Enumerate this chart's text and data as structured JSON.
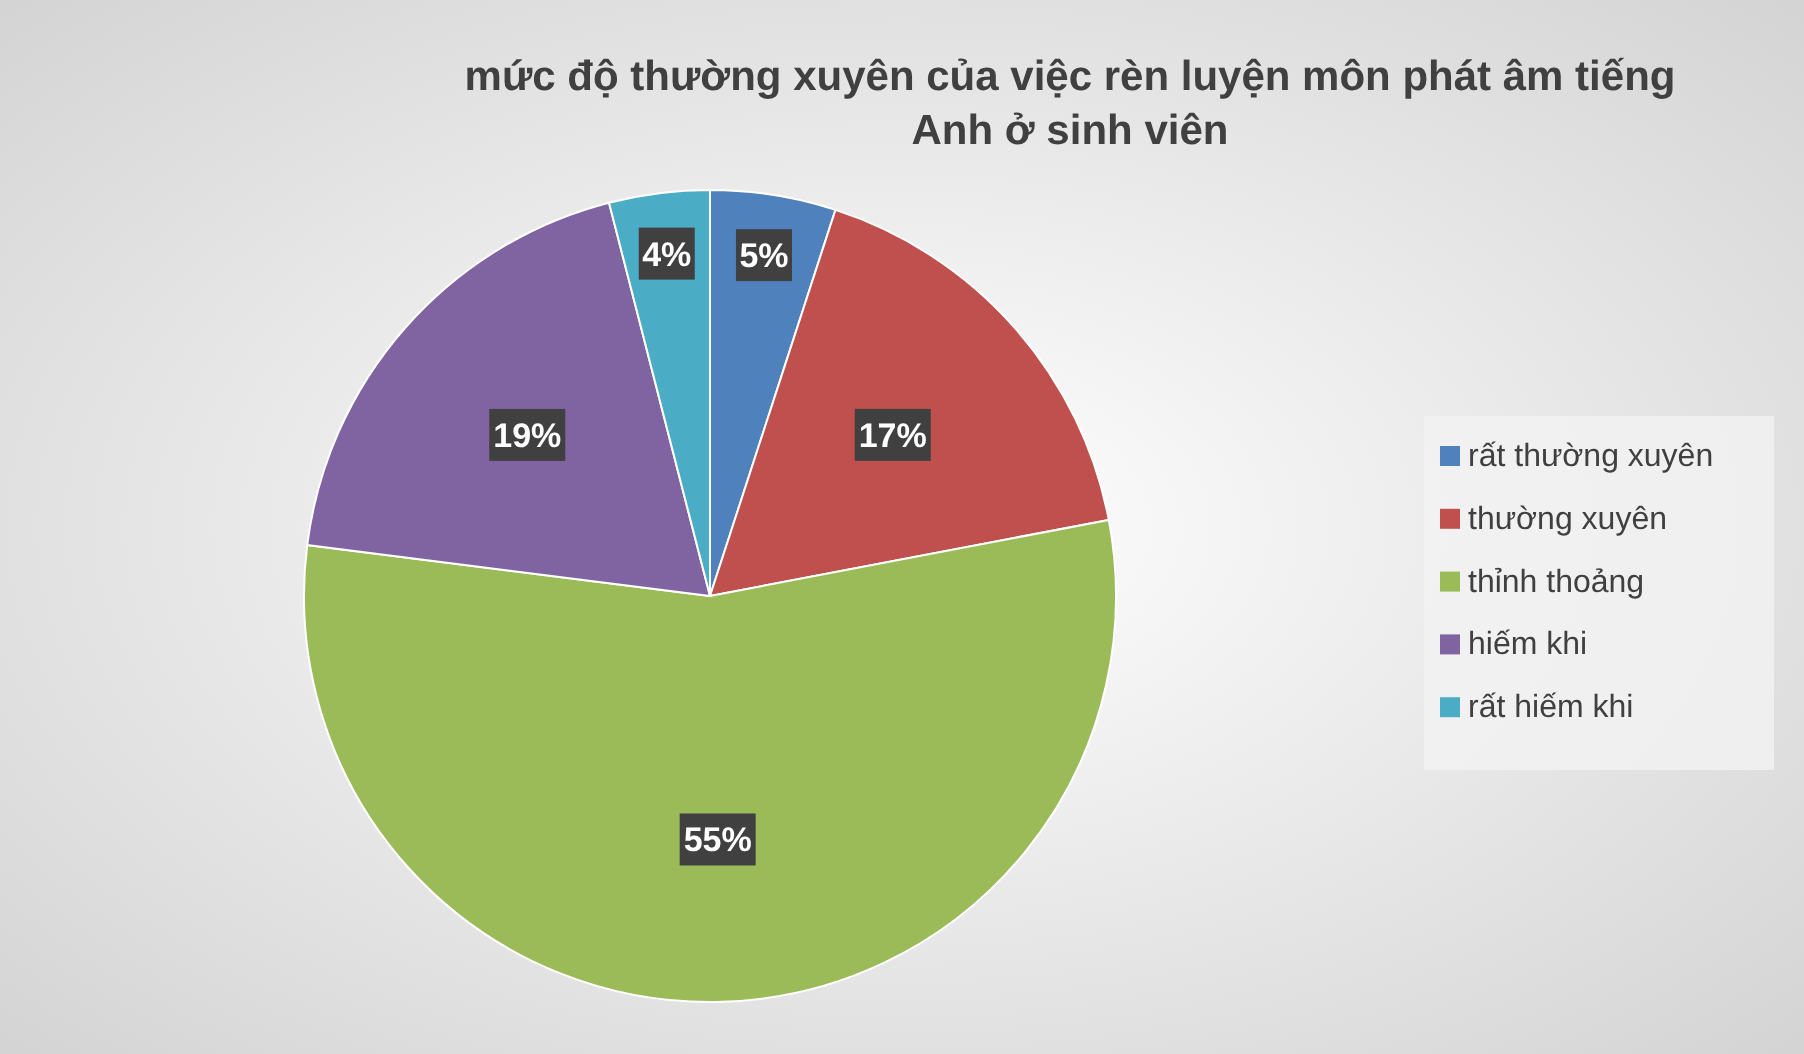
{
  "chart_data": {
    "type": "pie",
    "title": "mức độ thường xuyên của việc rèn luyện môn phát âm tiếng Anh ở sinh viên",
    "categories": [
      "rất thường xuyên",
      "thường xuyên",
      "thỉnh thoảng",
      "hiếm khi",
      "rất hiếm khi"
    ],
    "values": [
      5,
      17,
      55,
      19,
      4
    ],
    "colors": [
      "#4f81bd",
      "#c0504d",
      "#9bbb59",
      "#8064a2",
      "#4bacc6"
    ],
    "value_labels": [
      "5%",
      "17%",
      "55%",
      "19%",
      "4%"
    ],
    "legend": "right"
  }
}
